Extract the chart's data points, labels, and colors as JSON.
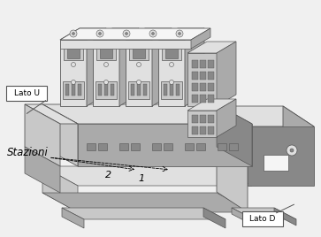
{
  "bg_color": "#f0f0f0",
  "label_lato_u": "Lato U",
  "label_lato_d": "Lato D",
  "label_stazioni": "Stazioni",
  "c_white": "#f5f5f5",
  "c_light": "#e0e0e0",
  "c_mid": "#c8c8c8",
  "c_dark": "#aaaaaa",
  "c_darker": "#888888",
  "c_darkest": "#666666",
  "c_edge": "#555555",
  "figsize": [
    3.63,
    2.68
  ],
  "dpi": 100
}
